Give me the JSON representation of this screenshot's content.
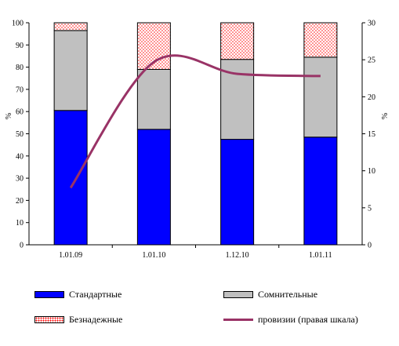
{
  "chart_data": {
    "type": "bar",
    "stacked": true,
    "categories": [
      "1.01.09",
      "1.01.10",
      "1.12.10",
      "1.01.11"
    ],
    "series": [
      {
        "name": "Стандартные",
        "type": "bar",
        "axis": "left",
        "color": "#0000ff",
        "values": [
          60.5,
          52,
          47.5,
          48.5
        ]
      },
      {
        "name": "Сомнительные",
        "type": "bar",
        "axis": "left",
        "color": "#c0c0c0",
        "values": [
          36,
          27,
          36,
          36
        ]
      },
      {
        "name": "Безнадежные",
        "type": "bar",
        "axis": "left",
        "color": "#ff0000",
        "pattern": "dots",
        "values": [
          3.5,
          21,
          16.5,
          15.5
        ]
      },
      {
        "name": "провизии (правая шкала)",
        "type": "line",
        "axis": "right",
        "color": "#993366",
        "values": [
          7.7,
          24.7,
          23.1,
          22.8
        ]
      }
    ],
    "ylabel": "%",
    "y2label": "%",
    "ylim": [
      0,
      100
    ],
    "y2lim": [
      0,
      30
    ],
    "yticks": [
      "0",
      "10",
      "20",
      "30",
      "40",
      "50",
      "60",
      "70",
      "80",
      "90",
      "100"
    ],
    "y2ticks": [
      "0",
      "5",
      "10",
      "15",
      "20",
      "25",
      "30"
    ],
    "grid": false,
    "legend_position": "bottom"
  }
}
